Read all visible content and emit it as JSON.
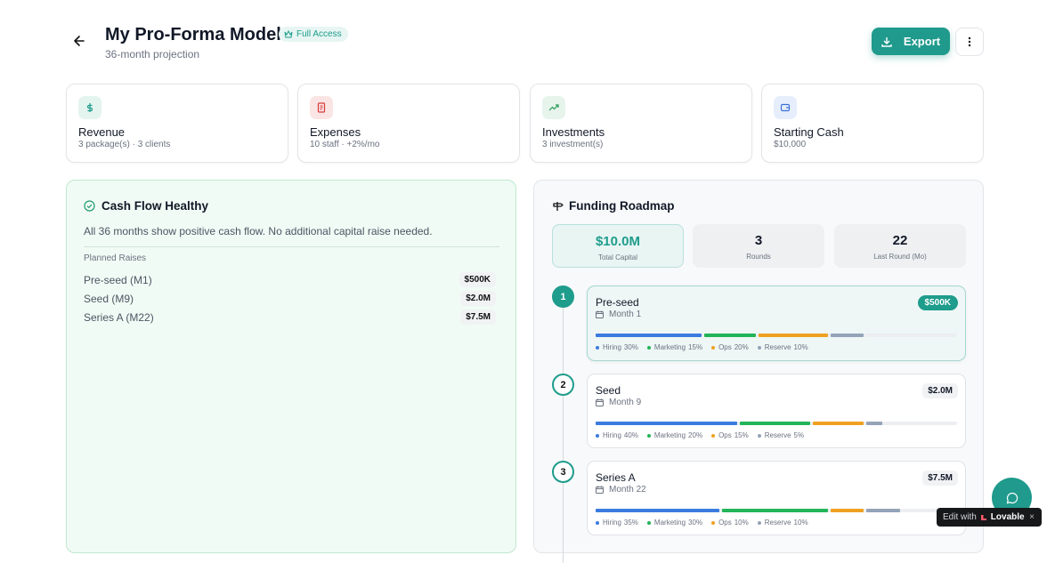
{
  "header": {
    "title": "My Pro-Forma Model",
    "badge": "Full Access",
    "subtitle": "36-month projection",
    "export": "Export"
  },
  "summary_cards": [
    {
      "title": "Revenue",
      "subtitle": "3 package(s) · 3 clients"
    },
    {
      "title": "Expenses",
      "subtitle": "10 staff · +2%/mo"
    },
    {
      "title": "Investments",
      "subtitle": "3 investment(s)"
    },
    {
      "title": "Starting Cash",
      "subtitle": "$10,000"
    }
  ],
  "cash_flow": {
    "title": "Cash Flow Healthy",
    "message": "All 36 months show positive cash flow. No additional capital raise needed.",
    "raises_heading": "Planned Raises",
    "raises": [
      {
        "name": "Pre-seed (M1)",
        "amount": "$500K"
      },
      {
        "name": "Seed (M9)",
        "amount": "$2.0M"
      },
      {
        "name": "Series A (M22)",
        "amount": "$7.5M"
      }
    ]
  },
  "funding_roadmap": {
    "title": "Funding Roadmap",
    "stats": [
      {
        "value": "$10.0M",
        "label": "Total Capital"
      },
      {
        "value": 3,
        "label": "Rounds"
      },
      {
        "value": 22,
        "label": "Last Round (Mo)"
      }
    ],
    "rounds": [
      {
        "index": 1,
        "name": "Pre-seed",
        "month": "Month 1",
        "amount": "$500K",
        "allocations": [
          {
            "name": "Hiring",
            "value": 30,
            "label": "30%",
            "color": "#3b7be0"
          },
          {
            "name": "Marketing",
            "value": 15,
            "label": "15%",
            "color": "#22b458"
          },
          {
            "name": "Ops",
            "value": 20,
            "label": "20%",
            "color": "#f0a020"
          },
          {
            "name": "Reserve",
            "value": 10,
            "label": "10%",
            "color": "#94a3b8"
          }
        ]
      },
      {
        "index": 2,
        "name": "Seed",
        "month": "Month 9",
        "amount": "$2.0M",
        "allocations": [
          {
            "name": "Hiring",
            "value": 40,
            "label": "40%",
            "color": "#3b7be0"
          },
          {
            "name": "Marketing",
            "value": 20,
            "label": "20%",
            "color": "#22b458"
          },
          {
            "name": "Ops",
            "value": 15,
            "label": "15%",
            "color": "#f0a020"
          },
          {
            "name": "Reserve",
            "value": 5,
            "label": "5%",
            "color": "#94a3b8"
          }
        ]
      },
      {
        "index": 3,
        "name": "Series A",
        "month": "Month 22",
        "amount": "$7.5M",
        "allocations": [
          {
            "name": "Hiring",
            "value": 35,
            "label": "35%",
            "color": "#3b7be0"
          },
          {
            "name": "Marketing",
            "value": 30,
            "label": "30%",
            "color": "#22b458"
          },
          {
            "name": "Ops",
            "value": 10,
            "label": "10%",
            "color": "#f0a020"
          },
          {
            "name": "Reserve",
            "value": 10,
            "label": "10%",
            "color": "#94a3b8"
          }
        ]
      }
    ]
  },
  "badge": {
    "text": "Edit with",
    "brand": "Lovable"
  }
}
